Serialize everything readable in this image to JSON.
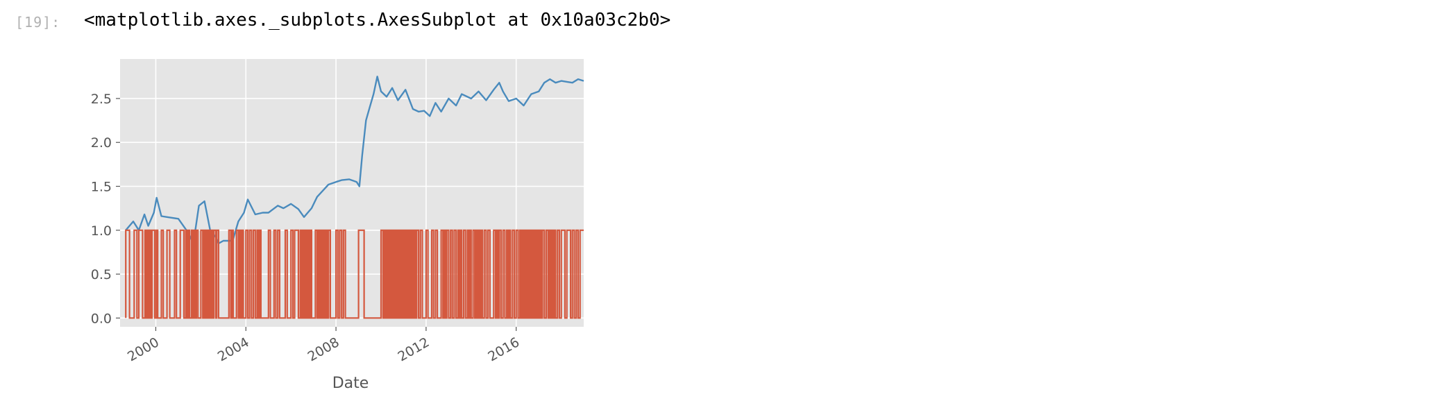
{
  "cell": {
    "prompt": "[19]:",
    "output_text": "<matplotlib.axes._subplots.AxesSubplot at 0x10a03c2b0>"
  },
  "colors": {
    "plot_background": "#e5e5e5",
    "grid": "#ffffff",
    "series_strategy": "#4a8bbd",
    "series_signal": "#d4583e",
    "tick_text": "#555555"
  },
  "chart_data": {
    "type": "line",
    "style": "ggplot",
    "title": "",
    "xlabel": "Date",
    "ylabel": "",
    "xlim": [
      "1998-06-01",
      "2018-12-31"
    ],
    "ylim": [
      -0.1,
      2.95
    ],
    "x_ticks": [
      "2000",
      "2004",
      "2008",
      "2012",
      "2016"
    ],
    "y_ticks": [
      "0.0",
      "0.5",
      "1.0",
      "1.5",
      "2.0",
      "2.5"
    ],
    "grid": true,
    "legend": "none",
    "series": [
      {
        "x": [
          "1998-09-01",
          "1999-01-01",
          "1999-04-01",
          "1999-07-01",
          "1999-09-01",
          "1999-12-01",
          "2000-01-15",
          "2000-04-01",
          "2000-07-01",
          "2001-01-01",
          "2001-06-01",
          "2001-09-01",
          "2001-12-01",
          "2002-03-01",
          "2002-06-01",
          "2002-09-01",
          "2002-10-15",
          "2003-01-01",
          "2003-06-01",
          "2003-09-01",
          "2003-12-01",
          "2004-02-01",
          "2004-06-01",
          "2004-10-01",
          "2005-01-01",
          "2005-06-01",
          "2005-09-01",
          "2006-01-01",
          "2006-05-01",
          "2006-08-01",
          "2006-12-01",
          "2007-03-01",
          "2007-06-01",
          "2007-09-01",
          "2008-01-01",
          "2008-04-01",
          "2008-08-01",
          "2008-12-01",
          "2009-01-15",
          "2009-03-01",
          "2009-05-01",
          "2009-07-01",
          "2009-09-01",
          "2009-11-01",
          "2010-01-01",
          "2010-04-01",
          "2010-07-01",
          "2010-10-01",
          "2011-02-01",
          "2011-06-01",
          "2011-09-01",
          "2011-12-01",
          "2012-03-01",
          "2012-06-01",
          "2012-09-01",
          "2013-01-01",
          "2013-05-01",
          "2013-08-01",
          "2014-01-01",
          "2014-05-01",
          "2014-09-01",
          "2015-01-01",
          "2015-04-01",
          "2015-06-01",
          "2015-09-01",
          "2016-01-01",
          "2016-05-01",
          "2016-09-01",
          "2017-01-01",
          "2017-04-01",
          "2017-07-01",
          "2017-10-01",
          "2018-01-01",
          "2018-04-01",
          "2018-07-01",
          "2018-10-01",
          "2018-12-31"
        ],
        "values": [
          1.0,
          1.1,
          1.0,
          1.18,
          1.05,
          1.2,
          1.37,
          1.16,
          1.15,
          1.13,
          0.98,
          0.85,
          1.28,
          1.33,
          1.0,
          0.92,
          0.85,
          0.88,
          0.88,
          1.1,
          1.2,
          1.35,
          1.18,
          1.2,
          1.2,
          1.28,
          1.25,
          1.3,
          1.24,
          1.15,
          1.25,
          1.38,
          1.45,
          1.52,
          1.55,
          1.57,
          1.58,
          1.55,
          1.5,
          1.85,
          2.25,
          2.4,
          2.55,
          2.75,
          2.58,
          2.52,
          2.62,
          2.48,
          2.6,
          2.38,
          2.35,
          2.36,
          2.3,
          2.45,
          2.35,
          2.5,
          2.42,
          2.55,
          2.5,
          2.58,
          2.48,
          2.6,
          2.68,
          2.58,
          2.47,
          2.5,
          2.42,
          2.55,
          2.58,
          2.68,
          2.72,
          2.68,
          2.7,
          2.69,
          2.68,
          2.72,
          2.7
        ]
      },
      {
        "switch_dates": [
          "1998-09-01",
          "1998-11-01",
          "1999-01-15",
          "1999-03-01",
          "1999-04-01",
          "1999-06-01",
          "1999-07-10",
          "1999-07-25",
          "1999-08-10",
          "1999-09-01",
          "1999-09-20",
          "1999-10-10",
          "1999-11-01",
          "1999-12-15",
          "2000-01-10",
          "2000-02-01",
          "2000-04-01",
          "2000-05-01",
          "2000-07-01",
          "2000-08-15",
          "2000-11-01",
          "2000-12-01",
          "2001-02-01",
          "2001-04-01",
          "2001-05-01",
          "2001-05-20",
          "2001-06-10",
          "2001-07-01",
          "2001-08-01",
          "2001-08-20",
          "2001-09-10",
          "2001-10-01",
          "2001-10-20",
          "2001-11-15",
          "2002-01-01",
          "2002-02-01",
          "2002-02-20",
          "2002-03-10",
          "2002-04-01",
          "2002-04-20",
          "2002-05-10",
          "2002-06-01",
          "2002-06-20",
          "2002-07-10",
          "2002-08-01",
          "2002-09-01",
          "2002-09-15",
          "2002-10-15",
          "2003-04-01",
          "2003-05-01",
          "2003-05-20",
          "2003-06-10",
          "2003-08-01",
          "2003-09-01",
          "2003-09-20",
          "2003-10-10",
          "2003-11-01",
          "2003-11-20",
          "2004-01-01",
          "2004-02-01",
          "2004-03-01",
          "2004-04-01",
          "2004-05-01",
          "2004-06-01",
          "2004-07-01",
          "2004-07-20",
          "2004-08-10",
          "2004-09-01",
          "2005-01-01",
          "2005-02-01",
          "2005-04-01",
          "2005-05-01",
          "2005-06-01",
          "2005-07-01",
          "2005-10-01",
          "2005-11-01",
          "2006-01-01",
          "2006-02-01",
          "2006-03-01",
          "2006-05-01",
          "2006-06-01",
          "2006-06-20",
          "2006-07-10",
          "2006-08-01",
          "2006-08-20",
          "2006-09-10",
          "2006-10-01",
          "2006-10-20",
          "2006-11-10",
          "2006-12-01",
          "2007-02-01",
          "2007-03-01",
          "2007-03-20",
          "2007-04-10",
          "2007-05-01",
          "2007-05-20",
          "2007-06-10",
          "2007-07-01",
          "2007-07-20",
          "2007-08-10",
          "2007-09-01",
          "2007-10-01",
          "2008-01-01",
          "2008-02-01",
          "2008-03-01",
          "2008-04-01",
          "2008-05-01",
          "2008-06-01",
          "2009-01-01",
          "2009-04-01",
          "2010-01-01",
          "2010-02-01",
          "2010-02-20",
          "2010-03-10",
          "2010-04-01",
          "2010-04-20",
          "2010-05-10",
          "2010-06-01",
          "2010-06-20",
          "2010-07-10",
          "2010-08-01",
          "2010-08-20",
          "2010-09-10",
          "2010-10-01",
          "2010-10-20",
          "2010-11-10",
          "2010-12-01",
          "2010-12-20",
          "2011-01-10",
          "2011-02-01",
          "2011-02-20",
          "2011-03-10",
          "2011-04-01",
          "2011-04-20",
          "2011-05-10",
          "2011-06-01",
          "2011-06-20",
          "2011-07-10",
          "2011-08-01",
          "2011-09-01",
          "2011-10-01",
          "2011-11-01",
          "2012-01-01",
          "2012-02-01",
          "2012-04-01",
          "2012-05-01",
          "2012-06-01",
          "2012-07-01",
          "2012-09-01",
          "2012-10-01",
          "2012-10-20",
          "2012-11-10",
          "2012-12-01",
          "2013-01-01",
          "2013-02-01",
          "2013-03-01",
          "2013-04-01",
          "2013-05-01",
          "2013-06-01",
          "2013-06-20",
          "2013-07-10",
          "2013-08-01",
          "2013-09-01",
          "2013-10-01",
          "2013-11-01",
          "2013-11-20",
          "2013-12-10",
          "2014-01-01",
          "2014-02-01",
          "2014-03-01",
          "2014-03-20",
          "2014-04-10",
          "2014-05-01",
          "2014-05-20",
          "2014-06-10",
          "2014-07-01",
          "2014-08-01",
          "2014-09-01",
          "2014-10-01",
          "2014-11-01",
          "2015-01-01",
          "2015-02-01",
          "2015-02-20",
          "2015-03-10",
          "2015-04-01",
          "2015-05-01",
          "2015-06-01",
          "2015-07-01",
          "2015-08-01",
          "2015-08-20",
          "2015-09-10",
          "2015-10-01",
          "2015-11-01",
          "2015-12-01",
          "2016-01-01",
          "2016-02-01",
          "2016-03-01",
          "2016-03-20",
          "2016-04-10",
          "2016-05-01",
          "2016-05-20",
          "2016-06-10",
          "2016-07-01",
          "2016-07-20",
          "2016-08-10",
          "2016-09-01",
          "2016-09-20",
          "2016-10-10",
          "2016-11-01",
          "2016-11-20",
          "2016-12-10",
          "2017-01-01",
          "2017-01-20",
          "2017-02-10",
          "2017-03-01",
          "2017-04-01",
          "2017-05-01",
          "2017-06-01",
          "2017-06-20",
          "2017-07-10",
          "2017-08-01",
          "2017-08-20",
          "2017-09-10",
          "2017-10-01",
          "2017-11-01",
          "2017-12-01",
          "2018-01-01",
          "2018-03-01",
          "2018-04-01",
          "2018-06-01",
          "2018-07-01",
          "2018-08-01",
          "2018-09-01",
          "2018-10-01",
          "2018-11-01"
        ],
        "start_value": 0
      }
    ]
  }
}
